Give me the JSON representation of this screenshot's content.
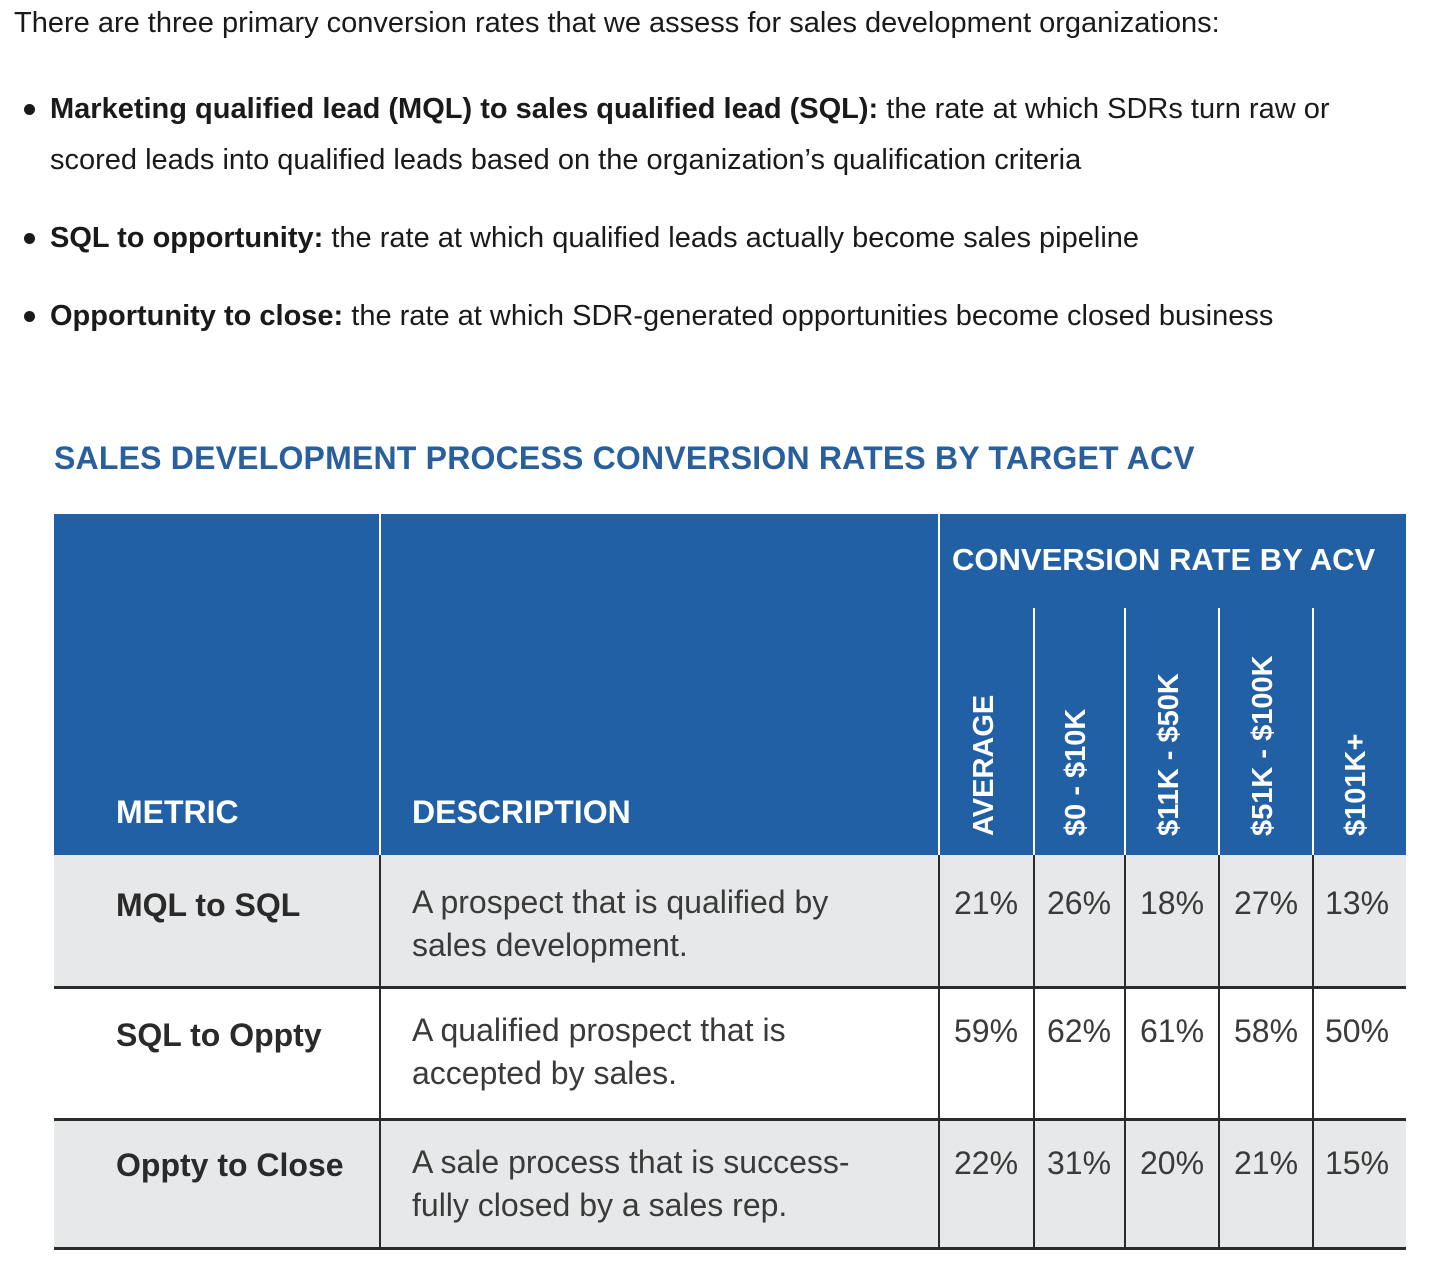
{
  "intro": "There are three primary conversion rates that we assess for sales development organizations:",
  "bullets": [
    {
      "term": "Marketing qualified lead (MQL) to sales qualified lead (SQL):",
      "text_line1": " the rate at which SDRs turn raw or",
      "text_line2": "scored leads into qualified leads based on the organization’s qualification criteria"
    },
    {
      "term": "SQL to opportunity:",
      "text_line1": " the rate at which qualified leads actually become sales pipeline"
    },
    {
      "term": "Opportunity to close:",
      "text_line1": " the rate at which SDR-generated opportunities become closed business"
    }
  ],
  "table": {
    "title": "SALES DEVELOPMENT PROCESS CONVERSION RATES BY TARGET ACV",
    "header": {
      "metric": "METRIC",
      "description": "DESCRIPTION",
      "group": "CONVERSION RATE BY ACV",
      "columns": [
        "AVERAGE",
        "$0 - $10K",
        "$11K - $50K",
        "$51K - $100K",
        "$101K+"
      ]
    },
    "rows": [
      {
        "metric": "MQL to SQL",
        "desc1": "A prospect that is qualified by",
        "desc2": "sales development.",
        "values": [
          "21%",
          "26%",
          "18%",
          "27%",
          "13%"
        ]
      },
      {
        "metric": "SQL to Oppty",
        "desc1": "A qualified prospect that is",
        "desc2": "accepted by sales.",
        "values": [
          "59%",
          "62%",
          "61%",
          "58%",
          "50%"
        ]
      },
      {
        "metric": "Oppty to Close",
        "desc1": "A sale process that is success-",
        "desc2": "fully closed by a sales rep.",
        "values": [
          "22%",
          "31%",
          "20%",
          "21%",
          "15%"
        ]
      }
    ]
  },
  "colors": {
    "header_blue": "#2160a5",
    "title_blue": "#2a5f9e",
    "row_shade": "#e7e8e9"
  }
}
